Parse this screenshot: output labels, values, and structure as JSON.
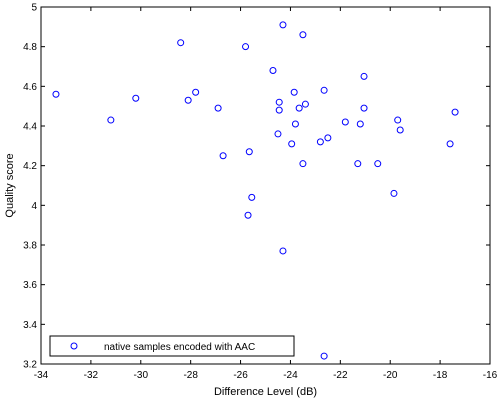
{
  "chart_data": {
    "type": "scatter",
    "xlabel": "Difference Level (dB)",
    "ylabel": "Quality score",
    "xlim": [
      -34,
      -16
    ],
    "ylim": [
      3.2,
      5
    ],
    "xticks": [
      -34,
      -32,
      -30,
      -28,
      -26,
      -24,
      -22,
      -20,
      -18,
      -16
    ],
    "yticks": [
      3.2,
      3.4,
      3.6,
      3.8,
      4,
      4.2,
      4.4,
      4.6,
      4.8,
      5
    ],
    "grid": false,
    "legend_position": "bottom-left",
    "marker_color": "#0000ff",
    "series": [
      {
        "name": "native samples encoded with AAC",
        "points": [
          {
            "x": -33.4,
            "y": 4.56
          },
          {
            "x": -31.2,
            "y": 4.43
          },
          {
            "x": -30.2,
            "y": 4.54
          },
          {
            "x": -28.4,
            "y": 4.82
          },
          {
            "x": -28.1,
            "y": 4.53
          },
          {
            "x": -27.8,
            "y": 4.57
          },
          {
            "x": -26.9,
            "y": 4.49
          },
          {
            "x": -26.7,
            "y": 4.25
          },
          {
            "x": -25.8,
            "y": 4.8
          },
          {
            "x": -25.7,
            "y": 3.95
          },
          {
            "x": -25.65,
            "y": 4.27
          },
          {
            "x": -25.55,
            "y": 4.04
          },
          {
            "x": -24.7,
            "y": 4.68
          },
          {
            "x": -24.5,
            "y": 4.36
          },
          {
            "x": -24.45,
            "y": 4.52
          },
          {
            "x": -24.45,
            "y": 4.48
          },
          {
            "x": -24.3,
            "y": 4.91
          },
          {
            "x": -24.3,
            "y": 3.77
          },
          {
            "x": -23.95,
            "y": 4.31
          },
          {
            "x": -23.85,
            "y": 4.57
          },
          {
            "x": -23.8,
            "y": 4.41
          },
          {
            "x": -23.65,
            "y": 4.49
          },
          {
            "x": -23.5,
            "y": 4.86
          },
          {
            "x": -23.5,
            "y": 4.21
          },
          {
            "x": -23.4,
            "y": 4.51
          },
          {
            "x": -22.8,
            "y": 4.32
          },
          {
            "x": -22.65,
            "y": 4.58
          },
          {
            "x": -22.65,
            "y": 3.24
          },
          {
            "x": -22.5,
            "y": 4.34
          },
          {
            "x": -21.8,
            "y": 4.42
          },
          {
            "x": -21.3,
            "y": 4.21
          },
          {
            "x": -21.2,
            "y": 4.41
          },
          {
            "x": -21.05,
            "y": 4.65
          },
          {
            "x": -21.05,
            "y": 4.49
          },
          {
            "x": -20.5,
            "y": 4.21
          },
          {
            "x": -19.85,
            "y": 4.06
          },
          {
            "x": -19.7,
            "y": 4.43
          },
          {
            "x": -19.6,
            "y": 4.38
          },
          {
            "x": -17.6,
            "y": 4.31
          },
          {
            "x": -17.4,
            "y": 4.47
          }
        ]
      }
    ]
  }
}
